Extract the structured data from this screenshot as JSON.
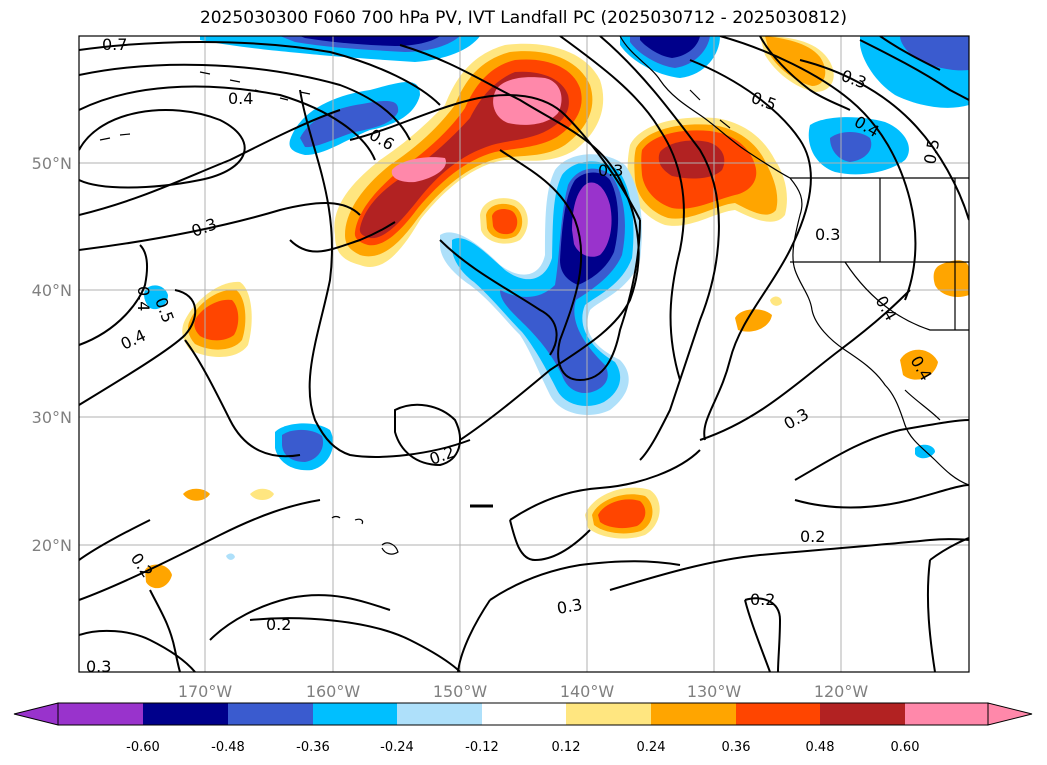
{
  "title": "2025030300 F060 700 hPa PV, IVT Landfall PC (2025030712 - 2025030812)",
  "map": {
    "longitude_ticks": [
      "170°W",
      "160°W",
      "150°W",
      "140°W",
      "130°W",
      "120°W"
    ],
    "latitude_ticks": [
      "50°N",
      "40°N",
      "30°N",
      "20°N"
    ],
    "grid": true,
    "coastlines": true
  },
  "colorbar": {
    "orientation": "horizontal",
    "extend": "both",
    "labels": [
      "-0.60",
      "-0.48",
      "-0.36",
      "-0.24",
      "-0.12",
      "0.12",
      "0.24",
      "0.36",
      "0.48",
      "0.60"
    ],
    "colors": [
      "#9933cc",
      "#00008b",
      "#3a5bcf",
      "#00bfff",
      "#aee0fa",
      "#ffffff",
      "#ffe680",
      "#ffa500",
      "#ff4500",
      "#b22222",
      "#ff88aa"
    ]
  },
  "contour_labels": [
    "0.7",
    "0.4",
    "0.6",
    "0.3",
    "0.5",
    "0.4",
    "0.3",
    "0.5",
    "0.3",
    "0.4",
    "0.5",
    "0.4",
    "0.4",
    "0.2",
    "0.3",
    "0.2",
    "0.2",
    "0.3",
    "0.2",
    "0.3",
    "0.2",
    "0.4",
    "0.3"
  ]
}
